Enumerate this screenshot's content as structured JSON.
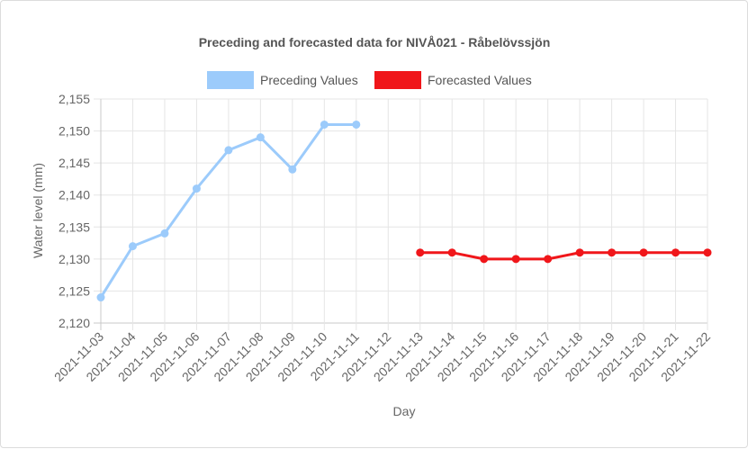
{
  "chart_data": {
    "type": "line",
    "title": "Preceding and forecasted data for NIVÅ021 - Råbelövssjön",
    "xlabel": "Day",
    "ylabel": "Water level (mm)",
    "ylim": [
      2120,
      2155
    ],
    "yticks": [
      "2,120",
      "2,125",
      "2,130",
      "2,135",
      "2,140",
      "2,145",
      "2,150",
      "2,155"
    ],
    "grid": true,
    "legend_position": "top",
    "categories": [
      "2021-11-03",
      "2021-11-04",
      "2021-11-05",
      "2021-11-06",
      "2021-11-07",
      "2021-11-08",
      "2021-11-09",
      "2021-11-10",
      "2021-11-11",
      "2021-11-12",
      "2021-11-13",
      "2021-11-14",
      "2021-11-15",
      "2021-11-16",
      "2021-11-17",
      "2021-11-18",
      "2021-11-19",
      "2021-11-20",
      "2021-11-21",
      "2021-11-22"
    ],
    "series": [
      {
        "name": "Preceding Values",
        "color": "#9ccbfb",
        "values": [
          2124,
          2132,
          2134,
          2141,
          2147,
          2149,
          2144,
          2151,
          2151,
          null,
          null,
          null,
          null,
          null,
          null,
          null,
          null,
          null,
          null,
          null
        ]
      },
      {
        "name": "Forecasted Values",
        "color": "#f0161a",
        "values": [
          null,
          null,
          null,
          null,
          null,
          null,
          null,
          null,
          null,
          null,
          2131,
          2131,
          2130,
          2130,
          2130,
          2131,
          2131,
          2131,
          2131,
          2131
        ]
      }
    ]
  }
}
